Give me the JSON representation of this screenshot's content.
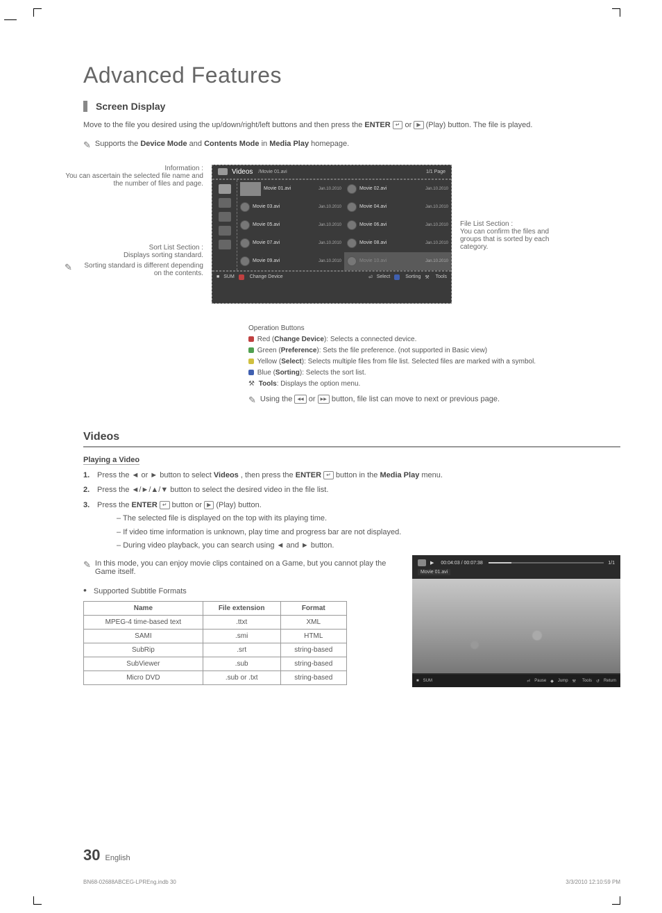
{
  "page": {
    "title": "Advanced Features",
    "section1_title": "Screen Display",
    "intro": "Move to the file you desired using the up/down/right/left buttons and then press the ",
    "intro_tail": " (Play) button. The file is played.",
    "enter_label": "ENTER",
    "or": " or ",
    "supports_note_pre": "Supports the ",
    "supports_note_b1": "Device Mode",
    "supports_note_mid": " and ",
    "supports_note_b2": "Contents Mode",
    "supports_note_post": " in ",
    "supports_note_b3": "Media Play",
    "supports_note_end": " homepage.",
    "callout_info_title": "Information :",
    "callout_info_body": "You can ascertain the selected file name and the number of files and page.",
    "callout_sort_title": "Sort List Section :",
    "callout_sort_body": "Displays sorting standard.",
    "callout_sort_note": "Sorting standard is different depending on the contents.",
    "callout_filelist_title": "File List Section :",
    "callout_filelist_body": "You can confirm the files and groups that is sorted by each category.",
    "section2_title": "Videos",
    "playing_video_title": "Playing a Video",
    "step1_pre": "Press the ◄ or ► button to select ",
    "step1_b1": "Videos",
    "step1_mid": ", then press the ",
    "step1_b2": "ENTER",
    "step1_post": " button in the ",
    "step1_b3": "Media Play",
    "step1_end": " menu.",
    "step2": "Press the ◄/►/▲/▼ button to select the desired video in the file list.",
    "step3_pre": "Press the ",
    "step3_b1": "ENTER",
    "step3_mid": " button or ",
    "step3_end": " (Play) button.",
    "dash1": "The selected file is displayed on the top with its playing time.",
    "dash2": "If video time information is unknown, play time and progress bar are not displayed.",
    "dash3": "During video playback, you can search using ◄ and ► button.",
    "game_note": "In this mode, you can enjoy movie clips contained on a Game, but you cannot play the Game itself.",
    "subtitle_heading": "Supported Subtitle Formats",
    "page_num": "30",
    "page_lang": "English",
    "footer_left": "BN68-02688ABCEG-LPREng.indb   30",
    "footer_right": "3/3/2010   12:10:59 PM"
  },
  "mediaplay": {
    "header_label": "Videos",
    "header_path": "/Movie 01.avi",
    "header_page": "1/1 Page",
    "files": [
      {
        "name1": "Movie 01.avi",
        "date1": "Jan.10.2010",
        "name2": "Movie 02.avi",
        "date2": "Jan.10.2010"
      },
      {
        "name1": "Movie 03.avi",
        "date1": "Jan.10.2010",
        "name2": "Movie 04.avi",
        "date2": "Jan.10.2010"
      },
      {
        "name1": "Movie 05.avi",
        "date1": "Jan.10.2010",
        "name2": "Movie 06.avi",
        "date2": "Jan.10.2010"
      },
      {
        "name1": "Movie 07.avi",
        "date1": "Jan.10.2010",
        "name2": "Movie 08.avi",
        "date2": "Jan.10.2010"
      },
      {
        "name1": "Movie 09.avi",
        "date1": "Jan.10.2010",
        "name2": "Movie 10.avi",
        "date2": "Jan.10.2010"
      }
    ],
    "footer_sum": "SUM",
    "footer_change": "Change Device",
    "footer_select": "Select",
    "footer_sorting": "Sorting",
    "footer_tools": "Tools"
  },
  "operation": {
    "heading": "Operation Buttons",
    "red_pre": "Red (",
    "red_b": "Change Device",
    "red_post": "): Selects a connected device.",
    "green_pre": "Green (",
    "green_b": "Preference",
    "green_post": "): Sets the file preference. (not supported in Basic view)",
    "yellow_pre": "Yellow (",
    "yellow_b": "Select",
    "yellow_post": "): Selects multiple files from file list. Selected files are marked with a symbol.",
    "blue_pre": "Blue (",
    "blue_b": "Sorting",
    "blue_post": "): Selects the sort list.",
    "tools_b": "Tools",
    "tools_post": ": Displays the option menu.",
    "nav_note_pre": "Using the ",
    "nav_note_post": " button, file list can move to next or previous page."
  },
  "subtitle_table": {
    "headers": [
      "Name",
      "File extension",
      "Format"
    ],
    "rows": [
      [
        "MPEG-4 time-based text",
        ".ttxt",
        "XML"
      ],
      [
        "SAMI",
        ".smi",
        "HTML"
      ],
      [
        "SubRip",
        ".srt",
        "string-based"
      ],
      [
        "SubViewer",
        ".sub",
        "string-based"
      ],
      [
        "Micro DVD",
        ".sub or .txt",
        "string-based"
      ]
    ]
  },
  "video_player": {
    "timecode": "00:04:03 / 00:07:38",
    "page": "1/1",
    "filename": "Movie 01.avi",
    "sum": "SUM",
    "ctrl_pause": "Pause",
    "ctrl_jump": "Jump",
    "ctrl_tools": "Tools",
    "ctrl_return": "Return"
  },
  "colors": {
    "badge_a": "#c04040",
    "badge_b": "#50a050",
    "badge_c": "#d0c040",
    "badge_d": "#4060b0"
  }
}
